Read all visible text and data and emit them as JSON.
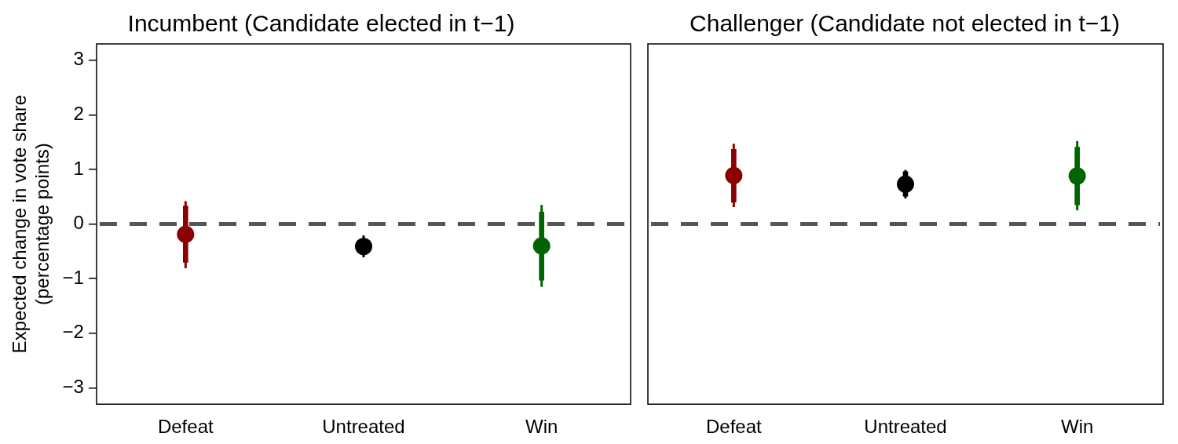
{
  "chart_data": [
    {
      "type": "scatter",
      "title": "Incumbent (Candidate elected in t−1)",
      "ylabel": "Expected change in vote share\n(percentage points)",
      "categories": [
        "Defeat",
        "Untreated",
        "Win"
      ],
      "marker": "circle",
      "grid": false,
      "legend": false,
      "ylim": [
        -3.3,
        3.3
      ],
      "yticks": [
        {
          "value": -3,
          "label": "−3"
        },
        {
          "value": -2,
          "label": "−2"
        },
        {
          "value": -1,
          "label": "−1"
        },
        0,
        1,
        2,
        3
      ],
      "ref_lines": [
        {
          "axis": "y",
          "value": 0,
          "color": "#555555",
          "line_style": "dashed"
        }
      ],
      "series": [
        {
          "type": "bar",
          "base": [
            -0.7,
            null,
            -1.03
          ],
          "values": [
            1.03,
            null,
            1.25
          ],
          "colors": [
            "#8b0000",
            "#000000",
            "#006400"
          ]
        },
        {
          "values": [
            -0.19,
            -0.41,
            -0.4
          ],
          "errors": [
            [
              -0.81,
              0.42
            ],
            [
              -0.61,
              -0.21
            ],
            [
              -1.15,
              0.35
            ]
          ],
          "colors": [
            "#8b0000",
            "#000000",
            "#006400"
          ]
        }
      ]
    },
    {
      "type": "scatter",
      "title": "Challenger (Candidate not elected in t−1)",
      "categories": [
        "Defeat",
        "Untreated",
        "Win"
      ],
      "marker": "circle",
      "grid": false,
      "legend": false,
      "tick_labels": "x",
      "ylim": [
        -3.3,
        3.3
      ],
      "ref_lines": [
        {
          "axis": "y",
          "value": 0,
          "color": "#555555",
          "line_style": "dashed"
        }
      ],
      "series": [
        {
          "type": "bar",
          "base": [
            0.4,
            0.51,
            0.35
          ],
          "values": [
            0.97,
            0.45,
            1.06
          ],
          "colors": [
            "#8b0000",
            "#000000",
            "#006400"
          ]
        },
        {
          "values": [
            0.89,
            0.73,
            0.88
          ],
          "errors": [
            [
              0.31,
              1.47
            ],
            [
              0.47,
              0.99
            ],
            [
              0.25,
              1.52
            ]
          ],
          "colors": [
            "#8b0000",
            "#000000",
            "#006400"
          ]
        }
      ]
    }
  ]
}
